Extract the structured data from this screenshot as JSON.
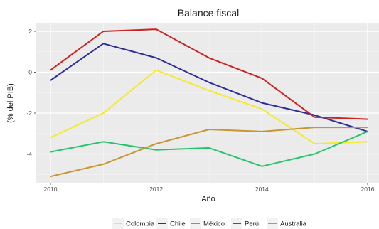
{
  "chart_data": {
    "type": "line",
    "title": "Balance fiscal",
    "xlabel": "Año",
    "ylabel": "(% del PIB)",
    "x": [
      2010,
      2011,
      2012,
      2013,
      2014,
      2015,
      2016
    ],
    "x_ticks": [
      2010,
      2012,
      2014,
      2016
    ],
    "y_ticks": [
      2,
      0,
      -2,
      -4
    ],
    "xlim": [
      2009.9,
      2016.1
    ],
    "ylim": [
      -5.3,
      2.3
    ],
    "grid": true,
    "legend_position": "bottom",
    "series": [
      {
        "name": "Colombia",
        "color": "#f2ea2a",
        "values": [
          -3.2,
          -2.0,
          0.1,
          -0.9,
          -1.8,
          -3.5,
          -3.4
        ]
      },
      {
        "name": "Chile",
        "color": "#2d2d9a",
        "values": [
          -0.4,
          1.4,
          0.7,
          -0.5,
          -1.5,
          -2.1,
          -2.9
        ]
      },
      {
        "name": "México",
        "color": "#27c46e",
        "values": [
          -3.9,
          -3.4,
          -3.8,
          -3.7,
          -4.6,
          -4.0,
          -2.9
        ]
      },
      {
        "name": "Perú",
        "color": "#cc2222",
        "values": [
          0.1,
          2.0,
          2.1,
          0.7,
          -0.3,
          -2.2,
          -2.3
        ]
      },
      {
        "name": "Australia",
        "color": "#c8962e",
        "values": [
          -5.1,
          -4.5,
          -3.5,
          -2.8,
          -2.9,
          -2.7,
          -2.7
        ]
      }
    ]
  }
}
